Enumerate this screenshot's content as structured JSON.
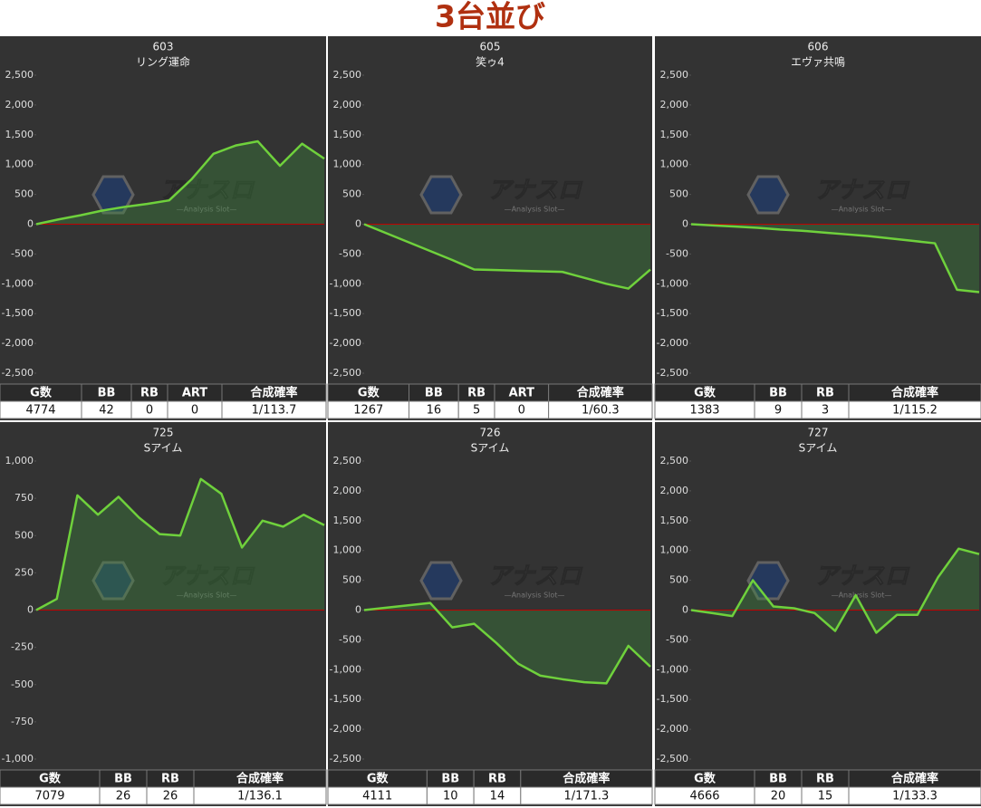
{
  "title": "3台並び",
  "watermark": {
    "title": "アナスロ",
    "subtitle": "—Analysis Slot—"
  },
  "chart_data": [
    {
      "type": "line",
      "title": "603",
      "subtitle": "リング運命",
      "color": "#6fd13c",
      "values": [
        0,
        80,
        150,
        230,
        290,
        340,
        400,
        750,
        1180,
        1320,
        1390,
        980,
        1350,
        1100
      ],
      "ylim": [
        -2500,
        2500
      ],
      "yticks": [
        {
          "value": 2500,
          "label": "2,500"
        },
        {
          "value": 2000,
          "label": "2,000"
        },
        {
          "value": 1500,
          "label": "1,500"
        },
        {
          "value": 1000,
          "label": "1,000"
        },
        500,
        0,
        -500,
        {
          "value": -1000,
          "label": "-1,000"
        },
        {
          "value": -1500,
          "label": "-1,500"
        },
        {
          "value": -2000,
          "label": "-2,000"
        },
        {
          "value": -2500,
          "label": "-2,500"
        }
      ],
      "table": {
        "header": [
          "G数",
          "BB",
          "RB",
          "ART",
          "合成確率"
        ],
        "row": [
          "4774",
          "42",
          "0",
          "0",
          "1/113.7"
        ]
      }
    },
    {
      "type": "line",
      "title": "605",
      "subtitle": "笑ゥ4",
      "color": "#6fd13c",
      "values": [
        0,
        -150,
        -300,
        -450,
        -600,
        -760,
        -770,
        -780,
        -790,
        -800,
        -900,
        -1000,
        -1080,
        -760
      ],
      "ylim": [
        -2500,
        2500
      ],
      "yticks": [
        {
          "value": 2500,
          "label": "2,500"
        },
        {
          "value": 2000,
          "label": "2,000"
        },
        {
          "value": 1500,
          "label": "1,500"
        },
        {
          "value": 1000,
          "label": "1,000"
        },
        500,
        0,
        -500,
        {
          "value": -1000,
          "label": "-1,000"
        },
        {
          "value": -1500,
          "label": "-1,500"
        },
        {
          "value": -2000,
          "label": "-2,000"
        },
        {
          "value": -2500,
          "label": "-2,500"
        }
      ],
      "table": {
        "header": [
          "G数",
          "BB",
          "RB",
          "ART",
          "合成確率"
        ],
        "row": [
          "1267",
          "16",
          "5",
          "0",
          "1/60.3"
        ]
      }
    },
    {
      "type": "line",
      "title": "606",
      "subtitle": "エヴァ共鳴",
      "color": "#6fd13c",
      "values": [
        0,
        -20,
        -40,
        -60,
        -90,
        -110,
        -140,
        -170,
        -200,
        -240,
        -280,
        -320,
        -1100,
        -1140
      ],
      "ylim": [
        -2500,
        2500
      ],
      "yticks": [
        {
          "value": 2500,
          "label": "2,500"
        },
        {
          "value": 2000,
          "label": "2,000"
        },
        {
          "value": 1500,
          "label": "1,500"
        },
        {
          "value": 1000,
          "label": "1,000"
        },
        500,
        0,
        -500,
        {
          "value": -1000,
          "label": "-1,000"
        },
        {
          "value": -1500,
          "label": "-1,500"
        },
        {
          "value": -2000,
          "label": "-2,000"
        },
        {
          "value": -2500,
          "label": "-2,500"
        }
      ],
      "table": {
        "header": [
          "G数",
          "BB",
          "RB",
          "合成確率"
        ],
        "row": [
          "1383",
          "9",
          "3",
          "1/115.2"
        ]
      }
    },
    {
      "type": "line",
      "title": "725",
      "subtitle": "Sアイム",
      "color": "#6fd13c",
      "values": [
        0,
        75,
        770,
        640,
        760,
        620,
        510,
        500,
        880,
        780,
        420,
        600,
        560,
        640,
        570
      ],
      "ylim": [
        -1000,
        1000
      ],
      "yticks": [
        {
          "value": 1000,
          "label": "1,000"
        },
        750,
        500,
        250,
        0,
        -250,
        -500,
        -750,
        {
          "value": -1000,
          "label": "-1,000"
        }
      ],
      "table": {
        "header": [
          "G数",
          "BB",
          "RB",
          "合成確率"
        ],
        "row": [
          "7079",
          "26",
          "26",
          "1/136.1"
        ]
      }
    },
    {
      "type": "line",
      "title": "726",
      "subtitle": "Sアイム",
      "color": "#6fd13c",
      "values": [
        0,
        40,
        80,
        120,
        -290,
        -230,
        -550,
        -900,
        -1100,
        -1160,
        -1210,
        -1230,
        -600,
        -950
      ],
      "ylim": [
        -2500,
        2500
      ],
      "yticks": [
        {
          "value": 2500,
          "label": "2,500"
        },
        {
          "value": 2000,
          "label": "2,000"
        },
        {
          "value": 1500,
          "label": "1,500"
        },
        {
          "value": 1000,
          "label": "1,000"
        },
        500,
        0,
        -500,
        {
          "value": -1000,
          "label": "-1,000"
        },
        {
          "value": -1500,
          "label": "-1,500"
        },
        {
          "value": -2000,
          "label": "-2,000"
        },
        {
          "value": -2500,
          "label": "-2,500"
        }
      ],
      "table": {
        "header": [
          "G数",
          "BB",
          "RB",
          "合成確率"
        ],
        "row": [
          "4111",
          "10",
          "14",
          "1/171.3"
        ]
      }
    },
    {
      "type": "line",
      "title": "727",
      "subtitle": "Sアイム",
      "color": "#6fd13c",
      "values": [
        0,
        -50,
        -100,
        500,
        60,
        30,
        -50,
        -350,
        250,
        -380,
        -80,
        -80,
        550,
        1030,
        940
      ],
      "ylim": [
        -2500,
        2500
      ],
      "yticks": [
        {
          "value": 2500,
          "label": "2,500"
        },
        {
          "value": 2000,
          "label": "2,000"
        },
        {
          "value": 1500,
          "label": "1,500"
        },
        {
          "value": 1000,
          "label": "1,000"
        },
        500,
        0,
        -500,
        {
          "value": -1000,
          "label": "-1,000"
        },
        {
          "value": -1500,
          "label": "-1,500"
        },
        {
          "value": -2000,
          "label": "-2,000"
        },
        {
          "value": -2500,
          "label": "-2,500"
        }
      ],
      "table": {
        "header": [
          "G数",
          "BB",
          "RB",
          "合成確率"
        ],
        "row": [
          "4666",
          "20",
          "15",
          "1/133.3"
        ]
      }
    }
  ]
}
